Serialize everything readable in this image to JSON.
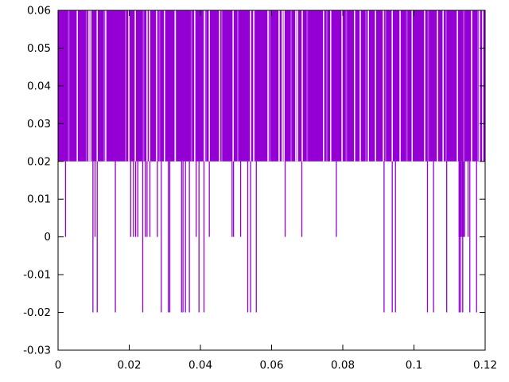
{
  "figure": {
    "background": "#ffffff",
    "frame_color": "#000000",
    "text_color": "#000000"
  },
  "chart_data": {
    "type": "line",
    "style": "impulses-band",
    "title": "",
    "xlabel": "",
    "ylabel": "",
    "legend": null,
    "grid": false,
    "xlim": [
      0,
      0.12
    ],
    "ylim": [
      -0.03,
      0.06
    ],
    "xticks": [
      0,
      0.02,
      0.04,
      0.06,
      0.08,
      0.1,
      0.12
    ],
    "xtick_labels": [
      "0",
      "0.02",
      "0.04",
      "0.06",
      "0.08",
      "0.1",
      "0.12"
    ],
    "yticks": [
      -0.03,
      -0.02,
      -0.01,
      0,
      0.01,
      0.02,
      0.03,
      0.04,
      0.05,
      0.06
    ],
    "ytick_labels": [
      "-0.03",
      "-0.02",
      "-0.01",
      "0",
      "0.01",
      "0.02",
      "0.03",
      "0.04",
      "0.05",
      "0.06"
    ],
    "line_color": "#9400D3",
    "band": {
      "x_start": 0,
      "x_end": 0.12,
      "y_bottom": 0.02,
      "y_top": 0.06
    },
    "band_gaps_x": [
      0.0054,
      0.0087,
      0.0092,
      0.011,
      0.0134,
      0.0199,
      0.0217,
      0.025,
      0.0257,
      0.0277,
      0.0299,
      0.0329,
      0.0384,
      0.0411,
      0.0425,
      0.0454,
      0.0492,
      0.0541,
      0.055,
      0.059,
      0.0621,
      0.063,
      0.0635,
      0.0668,
      0.0673,
      0.0686,
      0.0746,
      0.0766,
      0.0798,
      0.0833,
      0.0849,
      0.0872,
      0.0892,
      0.0914,
      0.0939,
      0.0961,
      0.0995,
      0.103,
      0.1066,
      0.1082,
      0.1122,
      0.1162,
      0.1184,
      0.1193
    ],
    "band_light_stripes_x": [
      0.003,
      0.008,
      0.013,
      0.019,
      0.024,
      0.0285,
      0.033,
      0.0375,
      0.0415,
      0.046,
      0.0505,
      0.055,
      0.0595,
      0.0655,
      0.07,
      0.0755,
      0.081,
      0.0865,
      0.092,
      0.098,
      0.104,
      0.109,
      0.114,
      0.118
    ],
    "spike_bottom_zero": 0,
    "spike_bottom_neg": -0.02,
    "spikes_to_zero_x": [
      0.0021,
      0.0104,
      0.0204,
      0.0212,
      0.0218,
      0.0224,
      0.0245,
      0.025,
      0.0258,
      0.0279,
      0.0388,
      0.0425,
      0.0489,
      0.0493,
      0.0513,
      0.0638,
      0.0685,
      0.0782,
      0.1127,
      0.113,
      0.1133,
      0.1136,
      0.1139,
      0.1142,
      0.1152
    ],
    "spikes_to_neg_x": [
      0.0098,
      0.011,
      0.0161,
      0.0238,
      0.029,
      0.031,
      0.0314,
      0.0347,
      0.0351,
      0.0358,
      0.0369,
      0.0396,
      0.041,
      0.0533,
      0.0541,
      0.0557,
      0.0916,
      0.0939,
      0.0948,
      0.1038,
      0.1055,
      0.1092,
      0.1127,
      0.1131,
      0.1137,
      0.1157,
      0.1176
    ]
  }
}
